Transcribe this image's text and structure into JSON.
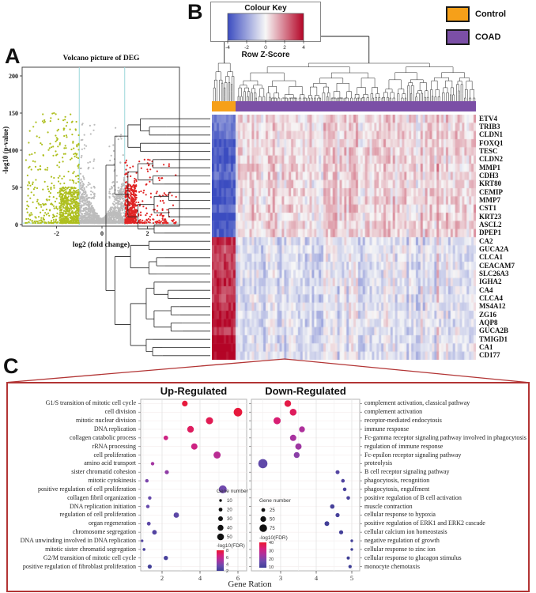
{
  "figure": {
    "panel_labels": [
      "A",
      "B",
      "C"
    ]
  },
  "chart_data": [
    {
      "id": "volcano",
      "type": "scatter",
      "title": "Volcano picture of DEG",
      "xlabel": "log2 (fold change)",
      "ylabel": "-log10 (p-value)",
      "x_ticks": [
        -2,
        0,
        2
      ],
      "y_ticks": [
        0,
        50,
        100,
        150,
        200
      ],
      "xlim": [
        -3.5,
        3.5
      ],
      "ylim": [
        0,
        212
      ],
      "threshold_x": [
        -1,
        1
      ],
      "threshold_y": 2,
      "threshold_color": "#9bd7da",
      "grid": false,
      "series": [
        {
          "name": "down-regulated",
          "color": "#aebf1f",
          "x_range": [
            -3.4,
            -1
          ],
          "y_range": [
            2,
            150
          ]
        },
        {
          "name": "not-significant",
          "color": "#bcbcbc",
          "x_range": [
            -1,
            1
          ],
          "y_range": [
            2,
            140
          ]
        },
        {
          "name": "up-regulated",
          "color": "#e02424",
          "x_range": [
            1,
            3.3
          ],
          "y_range": [
            2,
            88
          ]
        }
      ]
    },
    {
      "id": "heatmap",
      "type": "heatmap",
      "colour_key": {
        "title": "Colour Key",
        "label": "Row Z-Score",
        "ticks": [
          -4,
          -2,
          0,
          2,
          4
        ]
      },
      "groups": [
        {
          "label": "Control",
          "color": "#f6a019"
        },
        {
          "label": "COAD",
          "color": "#7b4fa6"
        }
      ],
      "rows": [
        "ETV4",
        "TRIB3",
        "CLDN1",
        "FOXQ1",
        "TESC",
        "CLDN2",
        "MMP1",
        "CDH3",
        "KRT80",
        "CEMIP",
        "MMP7",
        "CST1",
        "KRT23",
        "ASCL2",
        "DPEP1",
        "CA2",
        "GUCA2A",
        "CLCA1",
        "CEACAM7",
        "SLC26A3",
        "IGHA2",
        "CA4",
        "CLCA4",
        "MS4A12",
        "ZG16",
        "AQP8",
        "GUCA2B",
        "TMIGD1",
        "CA1",
        "CD177"
      ],
      "row_blocks": {
        "up_in_coad": 15,
        "down_in_coad": 15
      },
      "zscore_palette": {
        "low": "#3b4cc0",
        "mid": "#f7f7f7",
        "high": "#b40426"
      }
    },
    {
      "id": "go-up",
      "type": "scatter",
      "title": "Up-Regulated",
      "xlabel": "Gene Ration",
      "x_ticks": [
        2,
        4,
        6
      ],
      "legend_size": {
        "title": "Gene number",
        "entries": [
          10,
          20,
          30,
          40,
          50
        ]
      },
      "legend_color": {
        "title": "-log10(FDR)",
        "ticks": [
          8,
          6,
          4,
          2
        ],
        "range": [
          2,
          8
        ]
      },
      "terms": [
        {
          "label": "G1/S transition of mitotic cell cycle",
          "gene_ratio": 3.2,
          "gene_number": 30,
          "log10_fdr": 7.8
        },
        {
          "label": "cell division",
          "gene_ratio": 6.0,
          "gene_number": 52,
          "log10_fdr": 7.8
        },
        {
          "label": "mitotic nuclear division",
          "gene_ratio": 4.5,
          "gene_number": 42,
          "log10_fdr": 7.4
        },
        {
          "label": "DNA replication",
          "gene_ratio": 3.5,
          "gene_number": 38,
          "log10_fdr": 7.2
        },
        {
          "label": "collagen catabolic process",
          "gene_ratio": 2.2,
          "gene_number": 22,
          "log10_fdr": 6.4
        },
        {
          "label": "rRNA processing",
          "gene_ratio": 3.7,
          "gene_number": 35,
          "log10_fdr": 6.4
        },
        {
          "label": "cell proliferation",
          "gene_ratio": 4.9,
          "gene_number": 42,
          "log10_fdr": 5.8
        },
        {
          "label": "amino acid transport",
          "gene_ratio": 1.5,
          "gene_number": 14,
          "log10_fdr": 5.2
        },
        {
          "label": "sister chromatid cohesion",
          "gene_ratio": 2.25,
          "gene_number": 18,
          "log10_fdr": 4.8
        },
        {
          "label": "mitotic cytokinesis",
          "gene_ratio": 1.2,
          "gene_number": 13,
          "log10_fdr": 4.4
        },
        {
          "label": "positive regulation of cell proliferation",
          "gene_ratio": 5.2,
          "gene_number": 48,
          "log10_fdr": 4.2
        },
        {
          "label": "collagen fibril organization",
          "gene_ratio": 1.35,
          "gene_number": 13,
          "log10_fdr": 3.8
        },
        {
          "label": "DNA replication initiation",
          "gene_ratio": 1.25,
          "gene_number": 13,
          "log10_fdr": 3.8
        },
        {
          "label": "regulation of cell proliferation",
          "gene_ratio": 2.75,
          "gene_number": 28,
          "log10_fdr": 3.4
        },
        {
          "label": "organ regeneration",
          "gene_ratio": 1.3,
          "gene_number": 16,
          "log10_fdr": 3.4
        },
        {
          "label": "chromosome segregation",
          "gene_ratio": 1.6,
          "gene_number": 22,
          "log10_fdr": 3.0
        },
        {
          "label": "DNA unwinding involved in DNA replication",
          "gene_ratio": 0.95,
          "gene_number": 6,
          "log10_fdr": 3.0
        },
        {
          "label": "mitotic sister chromatid segregation",
          "gene_ratio": 1.05,
          "gene_number": 9,
          "log10_fdr": 2.6
        },
        {
          "label": "G2/M transition of mitotic cell cycle",
          "gene_ratio": 2.2,
          "gene_number": 20,
          "log10_fdr": 2.4
        },
        {
          "label": "positive regulation of fibroblast proliferation",
          "gene_ratio": 1.35,
          "gene_number": 18,
          "log10_fdr": 2.2
        }
      ]
    },
    {
      "id": "go-down",
      "type": "scatter",
      "title": "Down-Regulated",
      "xlabel": "Gene Ration",
      "x_ticks": [
        3,
        4,
        5
      ],
      "legend_size": {
        "title": "Gene number",
        "entries": [
          25,
          50,
          75
        ]
      },
      "legend_color": {
        "title": "-log10(FDR)",
        "ticks": [
          40,
          30,
          20,
          10
        ],
        "range": [
          9,
          40
        ]
      },
      "terms": [
        {
          "label": "complement activation, classical pathway",
          "gene_ratio": 3.2,
          "gene_number": 50,
          "log10_fdr": 38
        },
        {
          "label": "complement activation",
          "gene_ratio": 3.35,
          "gene_number": 52,
          "log10_fdr": 36
        },
        {
          "label": "receptor-mediated endocytosis",
          "gene_ratio": 2.9,
          "gene_number": 55,
          "log10_fdr": 34
        },
        {
          "label": "immune response",
          "gene_ratio": 3.6,
          "gene_number": 42,
          "log10_fdr": 27
        },
        {
          "label": "Fc-gamma receptor signaling pathway involved in phagocytosis",
          "gene_ratio": 3.35,
          "gene_number": 46,
          "log10_fdr": 26
        },
        {
          "label": "regulation of immune response",
          "gene_ratio": 3.5,
          "gene_number": 46,
          "log10_fdr": 25
        },
        {
          "label": "Fc-epsilon receptor signaling pathway",
          "gene_ratio": 3.45,
          "gene_number": 42,
          "log10_fdr": 23
        },
        {
          "label": "proteolysis",
          "gene_ratio": 2.5,
          "gene_number": 75,
          "log10_fdr": 17
        },
        {
          "label": "B cell receptor signaling pathway",
          "gene_ratio": 4.6,
          "gene_number": 22,
          "log10_fdr": 14
        },
        {
          "label": "phagocytosis, recognition",
          "gene_ratio": 4.75,
          "gene_number": 20,
          "log10_fdr": 13
        },
        {
          "label": "phagocytosis, engulfment",
          "gene_ratio": 4.8,
          "gene_number": 20,
          "log10_fdr": 12
        },
        {
          "label": "positive regulation of B cell activation",
          "gene_ratio": 4.9,
          "gene_number": 20,
          "log10_fdr": 12
        },
        {
          "label": "muscle contraction",
          "gene_ratio": 4.45,
          "gene_number": 28,
          "log10_fdr": 11
        },
        {
          "label": "cellular response to hypoxia",
          "gene_ratio": 4.6,
          "gene_number": 24,
          "log10_fdr": 11
        },
        {
          "label": "positive regulation of ERK1 and ERK2 cascade",
          "gene_ratio": 4.3,
          "gene_number": 30,
          "log10_fdr": 10
        },
        {
          "label": "cellular calcium ion homeostasis",
          "gene_ratio": 4.7,
          "gene_number": 24,
          "log10_fdr": 10
        },
        {
          "label": "negative regulation of growth",
          "gene_ratio": 5.0,
          "gene_number": 10,
          "log10_fdr": 10
        },
        {
          "label": "cellular response to zinc ion",
          "gene_ratio": 5.0,
          "gene_number": 10,
          "log10_fdr": 9
        },
        {
          "label": "cellular response to glucagon stimulus",
          "gene_ratio": 4.9,
          "gene_number": 14,
          "log10_fdr": 9
        },
        {
          "label": "monocyte chemotaxis",
          "gene_ratio": 4.95,
          "gene_number": 16,
          "log10_fdr": 9
        }
      ]
    }
  ]
}
